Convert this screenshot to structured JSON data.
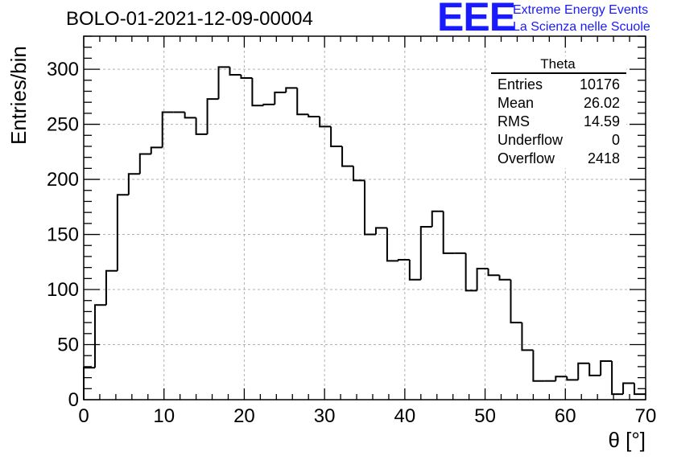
{
  "header": {
    "run_title": "BOLO-01-2021-12-09-00004",
    "logo_mark": "EEE",
    "logo_line1": "Extreme Energy Events",
    "logo_line2": "La Scienza nelle Scuole"
  },
  "stats": {
    "title": "Theta",
    "rows": [
      {
        "label": "Entries",
        "value": "10176"
      },
      {
        "label": "Mean",
        "value": "26.02"
      },
      {
        "label": "RMS",
        "value": "14.59"
      },
      {
        "label": "Underflow",
        "value": "0"
      },
      {
        "label": "Overflow",
        "value": "2418"
      }
    ]
  },
  "axes": {
    "xlabel": "θ [°]",
    "ylabel": "Entries/bin"
  },
  "colors": {
    "line": "#000000",
    "grid": "#b0b0b0",
    "logo": "#1a1aff"
  },
  "chart_data": {
    "type": "bar",
    "style": "step histogram",
    "bin_width": 1.4,
    "x_start": 0,
    "xlim": [
      0,
      70
    ],
    "ylim": [
      0,
      330
    ],
    "xticks": [
      0,
      10,
      20,
      30,
      40,
      50,
      60,
      70
    ],
    "yticks": [
      0,
      50,
      100,
      150,
      200,
      250,
      300
    ],
    "grid": true,
    "values": [
      29,
      86,
      117,
      186,
      205,
      223,
      229,
      261,
      261,
      256,
      241,
      273,
      302,
      295,
      292,
      267,
      268,
      279,
      283,
      259,
      257,
      248,
      230,
      212,
      199,
      150,
      156,
      126,
      127,
      109,
      157,
      171,
      133,
      133,
      99,
      119,
      113,
      109,
      70,
      45,
      17,
      17,
      21,
      18,
      33,
      22,
      35,
      5,
      15,
      5
    ]
  }
}
